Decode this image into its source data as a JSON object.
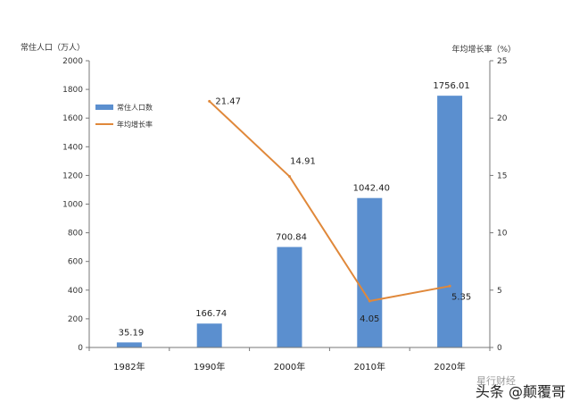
{
  "chart_data": {
    "type": "bar+line",
    "categories": [
      "1982年",
      "1990年",
      "2000年",
      "2010年",
      "2020年"
    ],
    "series": [
      {
        "name": "常住人口数",
        "type": "bar",
        "axis": "left",
        "values": [
          35.19,
          166.74,
          700.84,
          1042.4,
          1756.01
        ],
        "labels": [
          "35.19",
          "166.74",
          "700.84",
          "1042.40",
          "1756.01"
        ],
        "color": "#5b8fcf"
      },
      {
        "name": "年均增长率",
        "type": "line",
        "axis": "right",
        "values": [
          null,
          21.47,
          14.91,
          4.05,
          5.35
        ],
        "labels": [
          "",
          "21.47",
          "14.91",
          "4.05",
          "5.35"
        ],
        "color": "#e0883a"
      }
    ],
    "ylabel_left": "常住人口（万人）",
    "ylabel_right": "年均增长率（%）",
    "ylim_left": [
      0,
      2000
    ],
    "ylim_right": [
      0,
      25
    ],
    "yticks_left": [
      "0",
      "200",
      "400",
      "600",
      "800",
      "1000",
      "1200",
      "1400",
      "1600",
      "1800",
      "2000"
    ],
    "yticks_right": [
      "0",
      "5",
      "10",
      "15",
      "20",
      "25"
    ],
    "grid": false,
    "legend": "top-left"
  },
  "watermark": {
    "text": "头条 @颠覆哥",
    "faint_text": "星行财经"
  }
}
